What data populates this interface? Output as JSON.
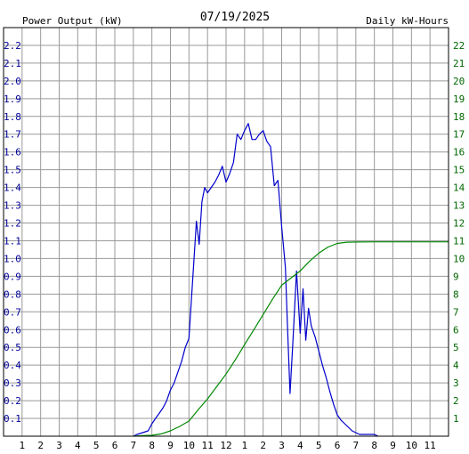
{
  "chart_data": {
    "type": "line",
    "title": "07/19/2025",
    "left_axis_label": "Power Output (kW)",
    "right_axis_label": "Daily kW-Hours",
    "x_ticks": [
      "1",
      "2",
      "3",
      "4",
      "5",
      "6",
      "7",
      "8",
      "9",
      "10",
      "11",
      "12",
      "1",
      "2",
      "3",
      "4",
      "5",
      "6",
      "7",
      "8",
      "9",
      "10",
      "11"
    ],
    "y_left": {
      "min": 0,
      "max": 2.3,
      "step": 0.1,
      "ticks": [
        "0.1",
        "0.2",
        "0.3",
        "0.4",
        "0.5",
        "0.6",
        "0.7",
        "0.8",
        "0.9",
        "1.0",
        "1.1",
        "1.2",
        "1.3",
        "1.4",
        "1.5",
        "1.6",
        "1.7",
        "1.8",
        "1.9",
        "2.0",
        "2.1",
        "2.2"
      ]
    },
    "y_right": {
      "min": 0,
      "max": 23,
      "step": 1,
      "ticks": [
        "1",
        "2",
        "3",
        "4",
        "5",
        "6",
        "7",
        "8",
        "9",
        "10",
        "11",
        "12",
        "13",
        "14",
        "15",
        "16",
        "17",
        "18",
        "19",
        "20",
        "21",
        "22"
      ]
    },
    "x_domain": [
      0,
      24
    ],
    "grid": true,
    "colors": {
      "power": "#0000cc",
      "energy": "#008800",
      "grid": "#999999",
      "left_text": "#000099",
      "right_text": "#006600",
      "title": "#000000"
    },
    "series": [
      {
        "axis": "left",
        "points": [
          [
            7.0,
            0
          ],
          [
            7.2,
            0.01
          ],
          [
            7.5,
            0.02
          ],
          [
            7.8,
            0.03
          ],
          [
            8.0,
            0.07
          ],
          [
            8.2,
            0.1
          ],
          [
            8.4,
            0.13
          ],
          [
            8.6,
            0.16
          ],
          [
            8.8,
            0.2
          ],
          [
            9.0,
            0.26
          ],
          [
            9.2,
            0.3
          ],
          [
            9.4,
            0.36
          ],
          [
            9.6,
            0.42
          ],
          [
            9.8,
            0.5
          ],
          [
            10.0,
            0.55
          ],
          [
            10.2,
            0.88
          ],
          [
            10.4,
            1.21
          ],
          [
            10.55,
            1.08
          ],
          [
            10.7,
            1.32
          ],
          [
            10.85,
            1.4
          ],
          [
            11.0,
            1.37
          ],
          [
            11.2,
            1.4
          ],
          [
            11.4,
            1.43
          ],
          [
            11.6,
            1.47
          ],
          [
            11.8,
            1.52
          ],
          [
            12.0,
            1.43
          ],
          [
            12.2,
            1.48
          ],
          [
            12.4,
            1.54
          ],
          [
            12.6,
            1.7
          ],
          [
            12.8,
            1.67
          ],
          [
            13.0,
            1.72
          ],
          [
            13.2,
            1.76
          ],
          [
            13.4,
            1.67
          ],
          [
            13.6,
            1.67
          ],
          [
            13.8,
            1.7
          ],
          [
            14.0,
            1.72
          ],
          [
            14.2,
            1.66
          ],
          [
            14.4,
            1.63
          ],
          [
            14.6,
            1.41
          ],
          [
            14.8,
            1.44
          ],
          [
            15.0,
            1.18
          ],
          [
            15.2,
            0.95
          ],
          [
            15.3,
            0.65
          ],
          [
            15.45,
            0.24
          ],
          [
            15.6,
            0.52
          ],
          [
            15.8,
            0.93
          ],
          [
            16.0,
            0.58
          ],
          [
            16.15,
            0.83
          ],
          [
            16.3,
            0.54
          ],
          [
            16.45,
            0.72
          ],
          [
            16.6,
            0.62
          ],
          [
            16.8,
            0.56
          ],
          [
            17.0,
            0.48
          ],
          [
            17.2,
            0.4
          ],
          [
            17.4,
            0.33
          ],
          [
            17.6,
            0.25
          ],
          [
            17.8,
            0.18
          ],
          [
            18.0,
            0.12
          ],
          [
            18.2,
            0.09
          ],
          [
            18.4,
            0.07
          ],
          [
            18.6,
            0.05
          ],
          [
            18.8,
            0.03
          ],
          [
            19.0,
            0.02
          ],
          [
            19.2,
            0.01
          ],
          [
            19.5,
            0.01
          ],
          [
            20.0,
            0.01
          ],
          [
            20.2,
            0
          ]
        ]
      },
      {
        "axis": "right",
        "points": [
          [
            7.0,
            0
          ],
          [
            7.5,
            0.03
          ],
          [
            8.0,
            0.05
          ],
          [
            8.5,
            0.13
          ],
          [
            9.0,
            0.3
          ],
          [
            9.5,
            0.55
          ],
          [
            10.0,
            0.85
          ],
          [
            10.5,
            1.5
          ],
          [
            11.0,
            2.1
          ],
          [
            11.5,
            2.8
          ],
          [
            12.0,
            3.5
          ],
          [
            12.5,
            4.3
          ],
          [
            13.0,
            5.15
          ],
          [
            13.5,
            6.0
          ],
          [
            14.0,
            6.85
          ],
          [
            14.5,
            7.7
          ],
          [
            15.0,
            8.5
          ],
          [
            15.5,
            8.9
          ],
          [
            16.0,
            9.3
          ],
          [
            16.5,
            9.85
          ],
          [
            17.0,
            10.3
          ],
          [
            17.5,
            10.65
          ],
          [
            18.0,
            10.85
          ],
          [
            18.5,
            10.92
          ],
          [
            19.0,
            10.93
          ],
          [
            20.0,
            10.94
          ],
          [
            24.0,
            10.94
          ]
        ]
      }
    ]
  }
}
